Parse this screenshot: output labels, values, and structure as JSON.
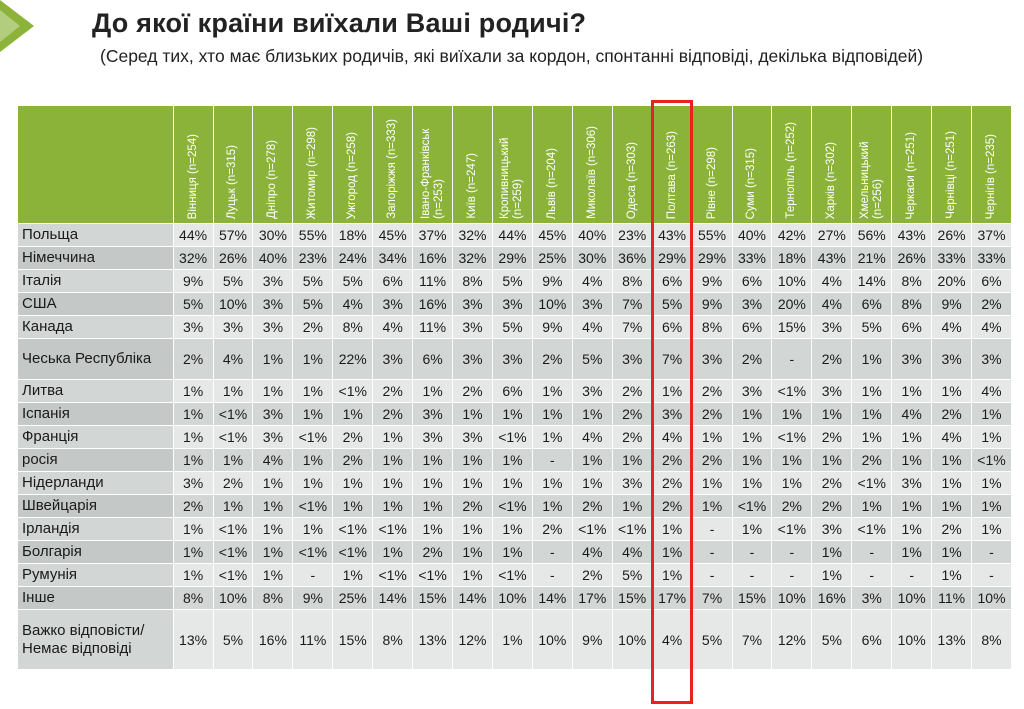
{
  "title": "До якої країни виїхали Ваші родичі?",
  "subtitle": "(Серед тих, хто має близьких родичів, які виїхали за кордон, спонтанні відповіді, декілька відповідей)",
  "colors": {
    "header_green": "#8bb33a",
    "highlight_red": "#e8231f",
    "cell_light": "#e6e8e7",
    "cell_dark": "#d2d6d5"
  },
  "highlighted_column": "Полтава (n=263)",
  "columns": [
    "Вінниця (n=254)",
    "Луцьк (n=315)",
    "Дніпро (n=278)",
    "Житомир (n=298)",
    "Ужгород (n=258)",
    "Запоріжжя (n=333)",
    "Івано-Франківськ (n=253)",
    "Київ (n=247)",
    "Кропивницький (n=259)",
    "Львів (n=204)",
    "Миколаїв (n=306)",
    "Одеса (n=303)",
    "Полтава (n=263)",
    "Рівне (n=298)",
    "Суми (n=315)",
    "Тернопіль (n=252)",
    "Харків (n=302)",
    "Хмельницький (n=256)",
    "Черкаси (n=251)",
    "Чернівці (n=251)",
    "Чернігів (n=235)"
  ],
  "rows": [
    {
      "label": "Польща",
      "values": [
        "44%",
        "57%",
        "30%",
        "55%",
        "18%",
        "45%",
        "37%",
        "32%",
        "44%",
        "45%",
        "40%",
        "23%",
        "43%",
        "55%",
        "40%",
        "42%",
        "27%",
        "56%",
        "43%",
        "26%",
        "37%"
      ]
    },
    {
      "label": "Німеччина",
      "values": [
        "32%",
        "26%",
        "40%",
        "23%",
        "24%",
        "34%",
        "16%",
        "32%",
        "29%",
        "25%",
        "30%",
        "36%",
        "29%",
        "29%",
        "33%",
        "18%",
        "43%",
        "21%",
        "26%",
        "33%",
        "33%"
      ]
    },
    {
      "label": "Італія",
      "values": [
        "9%",
        "5%",
        "3%",
        "5%",
        "5%",
        "6%",
        "11%",
        "8%",
        "5%",
        "9%",
        "4%",
        "8%",
        "6%",
        "9%",
        "6%",
        "10%",
        "4%",
        "14%",
        "8%",
        "20%",
        "6%"
      ]
    },
    {
      "label": "США",
      "values": [
        "5%",
        "10%",
        "3%",
        "5%",
        "4%",
        "3%",
        "16%",
        "3%",
        "3%",
        "10%",
        "3%",
        "7%",
        "5%",
        "9%",
        "3%",
        "20%",
        "4%",
        "6%",
        "8%",
        "9%",
        "2%"
      ]
    },
    {
      "label": "Канада",
      "values": [
        "3%",
        "3%",
        "3%",
        "2%",
        "8%",
        "4%",
        "11%",
        "3%",
        "5%",
        "9%",
        "4%",
        "7%",
        "6%",
        "8%",
        "6%",
        "15%",
        "3%",
        "5%",
        "6%",
        "4%",
        "4%"
      ]
    },
    {
      "label": "Чеська Республіка",
      "values": [
        "2%",
        "4%",
        "1%",
        "1%",
        "22%",
        "3%",
        "6%",
        "3%",
        "3%",
        "2%",
        "5%",
        "3%",
        "7%",
        "3%",
        "2%",
        "-",
        "2%",
        "1%",
        "3%",
        "3%",
        "3%"
      ]
    },
    {
      "label": "Литва",
      "values": [
        "1%",
        "1%",
        "1%",
        "1%",
        "<1%",
        "2%",
        "1%",
        "2%",
        "6%",
        "1%",
        "3%",
        "2%",
        "1%",
        "2%",
        "3%",
        "<1%",
        "3%",
        "1%",
        "1%",
        "1%",
        "4%"
      ]
    },
    {
      "label": "Іспанія",
      "values": [
        "1%",
        "<1%",
        "3%",
        "1%",
        "1%",
        "2%",
        "3%",
        "1%",
        "1%",
        "1%",
        "1%",
        "2%",
        "3%",
        "2%",
        "1%",
        "1%",
        "1%",
        "1%",
        "4%",
        "2%",
        "1%"
      ]
    },
    {
      "label": "Франція",
      "values": [
        "1%",
        "<1%",
        "3%",
        "<1%",
        "2%",
        "1%",
        "3%",
        "3%",
        "<1%",
        "1%",
        "4%",
        "2%",
        "4%",
        "1%",
        "1%",
        "<1%",
        "2%",
        "1%",
        "1%",
        "4%",
        "1%"
      ]
    },
    {
      "label": "росія",
      "values": [
        "1%",
        "1%",
        "4%",
        "1%",
        "2%",
        "1%",
        "1%",
        "1%",
        "1%",
        "-",
        "1%",
        "1%",
        "2%",
        "2%",
        "1%",
        "1%",
        "1%",
        "2%",
        "1%",
        "1%",
        "<1%"
      ]
    },
    {
      "label": "Нідерланди",
      "values": [
        "3%",
        "2%",
        "1%",
        "1%",
        "1%",
        "1%",
        "1%",
        "1%",
        "1%",
        "1%",
        "1%",
        "3%",
        "2%",
        "1%",
        "1%",
        "1%",
        "2%",
        "<1%",
        "3%",
        "1%",
        "1%"
      ]
    },
    {
      "label": "Швейцарія",
      "values": [
        "2%",
        "1%",
        "1%",
        "<1%",
        "1%",
        "1%",
        "1%",
        "2%",
        "<1%",
        "1%",
        "2%",
        "1%",
        "2%",
        "1%",
        "<1%",
        "2%",
        "2%",
        "1%",
        "1%",
        "1%",
        "1%"
      ]
    },
    {
      "label": "Ірландія",
      "values": [
        "1%",
        "<1%",
        "1%",
        "1%",
        "<1%",
        "<1%",
        "1%",
        "1%",
        "1%",
        "2%",
        "<1%",
        "<1%",
        "1%",
        "-",
        "1%",
        "<1%",
        "3%",
        "<1%",
        "1%",
        "2%",
        "1%"
      ]
    },
    {
      "label": "Болгарія",
      "values": [
        "1%",
        "<1%",
        "1%",
        "<1%",
        "<1%",
        "1%",
        "2%",
        "1%",
        "1%",
        "-",
        "4%",
        "4%",
        "1%",
        "-",
        "-",
        "-",
        "1%",
        "-",
        "1%",
        "1%",
        "-"
      ]
    },
    {
      "label": "Румунія",
      "values": [
        "1%",
        "<1%",
        "1%",
        "-",
        "1%",
        "<1%",
        "<1%",
        "1%",
        "<1%",
        "-",
        "2%",
        "5%",
        "1%",
        "-",
        "-",
        "-",
        "1%",
        "-",
        "-",
        "1%",
        "-"
      ]
    },
    {
      "label": "Інше",
      "values": [
        "8%",
        "10%",
        "8%",
        "9%",
        "25%",
        "14%",
        "15%",
        "14%",
        "10%",
        "14%",
        "17%",
        "15%",
        "17%",
        "7%",
        "15%",
        "10%",
        "16%",
        "3%",
        "10%",
        "11%",
        "10%"
      ]
    },
    {
      "label": "Важко відповісти/Немає відповіді",
      "values": [
        "13%",
        "5%",
        "16%",
        "11%",
        "15%",
        "8%",
        "13%",
        "12%",
        "1%",
        "10%",
        "9%",
        "10%",
        "4%",
        "5%",
        "7%",
        "12%",
        "5%",
        "6%",
        "10%",
        "13%",
        "8%"
      ]
    }
  ]
}
